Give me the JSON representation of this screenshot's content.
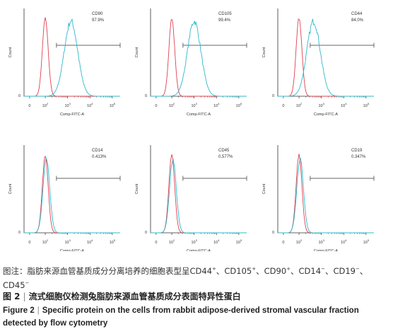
{
  "chart_data": [
    {
      "type": "line",
      "marker": "CD90",
      "percent": "97.9%",
      "xlabel": "Comp-FITC-A",
      "ylabel": "Count",
      "control_peak_log": 2.0,
      "stained_peak_log": 3.15,
      "gate_start_log": 2.5,
      "gate_end_log": 5.5
    },
    {
      "type": "line",
      "marker": "CD105",
      "percent": "99.4%",
      "xlabel": "Comp-FITC-A",
      "ylabel": "Count",
      "control_peak_log": 2.0,
      "stained_peak_log": 3.0,
      "gate_start_log": 2.5,
      "gate_end_log": 5.5
    },
    {
      "type": "line",
      "marker": "CD44",
      "percent": "84.0%",
      "xlabel": "Comp-FITC-A",
      "ylabel": "Count",
      "control_peak_log": 2.0,
      "stained_peak_log": 2.65,
      "gate_start_log": 2.5,
      "gate_end_log": 5.5
    },
    {
      "type": "line",
      "marker": "CD14",
      "percent": "0.413%",
      "xlabel": "Comp-FITC-A",
      "ylabel": "Count",
      "control_peak_log": 2.0,
      "stained_peak_log": 2.05,
      "gate_start_log": 2.5,
      "gate_end_log": 5.5
    },
    {
      "type": "line",
      "marker": "CD45",
      "percent": "0.577%",
      "xlabel": "Comp-FITC-A",
      "ylabel": "Count",
      "control_peak_log": 2.0,
      "stained_peak_log": 2.05,
      "gate_start_log": 2.5,
      "gate_end_log": 5.5
    },
    {
      "type": "line",
      "marker": "CD19",
      "percent": "0.347%",
      "xlabel": "Comp-FITC-A",
      "ylabel": "Count",
      "control_peak_log": 2.0,
      "stained_peak_log": 2.05,
      "gate_start_log": 2.5,
      "gate_end_log": 5.5
    }
  ],
  "ticks": [
    "0",
    "10",
    "10",
    "10",
    "10"
  ],
  "tick_exps": [
    "",
    "2",
    "3",
    "4",
    "5"
  ],
  "yzero": "0",
  "colors": {
    "control": "#e04050",
    "stained": "#2fb8cc",
    "axis": "#333333"
  },
  "caption": {
    "note_prefix": "图注：脂肪来源血管基质成分分离培养的细胞表型呈",
    "note_items": [
      {
        "name": "CD44",
        "sup": "+"
      },
      {
        "name": "CD105",
        "sup": "+"
      },
      {
        "name": "CD90",
        "sup": "+"
      },
      {
        "name": "CD14",
        "sup": "−"
      },
      {
        "name": "CD19",
        "sup": "−"
      },
      {
        "name": "CD45",
        "sup": "−"
      }
    ],
    "fig_label_cn": "图 2",
    "fig_sep": "|",
    "fig_title_cn": "流式细胞仪检测兔脂肪来源血管基质成分表面特异性蛋白",
    "fig_label_en": "Figure 2",
    "fig_title_en": "Specific protein on the cells from rabbit adipose-derived stromal vascular fraction detected by flow cytometry"
  }
}
